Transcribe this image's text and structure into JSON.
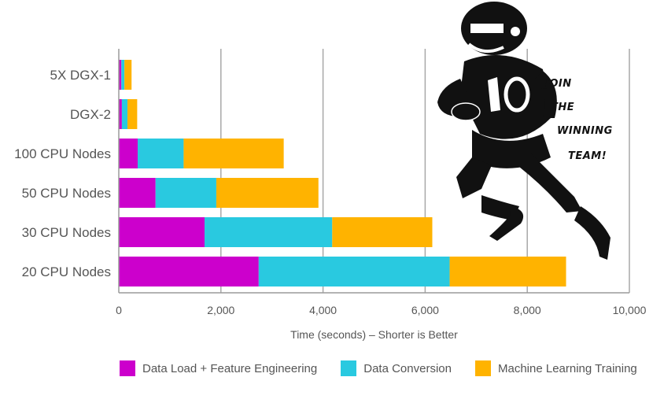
{
  "chart_data": {
    "type": "bar",
    "orientation": "horizontal",
    "stacked": true,
    "categories": [
      "5X DGX-1",
      "DGX-2",
      "100 CPU Nodes",
      "50 CPU Nodes",
      "30 CPU Nodes",
      "20 CPU Nodes"
    ],
    "series": [
      {
        "name": "Data Load + Feature Engineering",
        "color": "#cc00cc",
        "values": [
          50,
          60,
          370,
          720,
          1680,
          2740
        ]
      },
      {
        "name": "Data Conversion",
        "color": "#29c9e0",
        "values": [
          60,
          110,
          900,
          1190,
          2500,
          3740
        ]
      },
      {
        "name": "Machine Learning Training",
        "color": "#ffb300",
        "values": [
          140,
          190,
          1960,
          2000,
          1960,
          2280
        ]
      }
    ],
    "xlabel": "Time (seconds) – Shorter is Better",
    "xlim": [
      0,
      10000
    ],
    "xticks": [
      0,
      2000,
      4000,
      6000,
      8000,
      10000
    ],
    "xtick_labels": [
      "0",
      "2,000",
      "4,000",
      "6,000",
      "8,000",
      "10,000"
    ],
    "grid": "vertical",
    "legend_position": "bottom"
  },
  "illustration": {
    "subject": "football-player-icon",
    "slogan_lines": [
      "JOIN",
      "THE",
      "WINNING",
      "TEAM!"
    ]
  }
}
